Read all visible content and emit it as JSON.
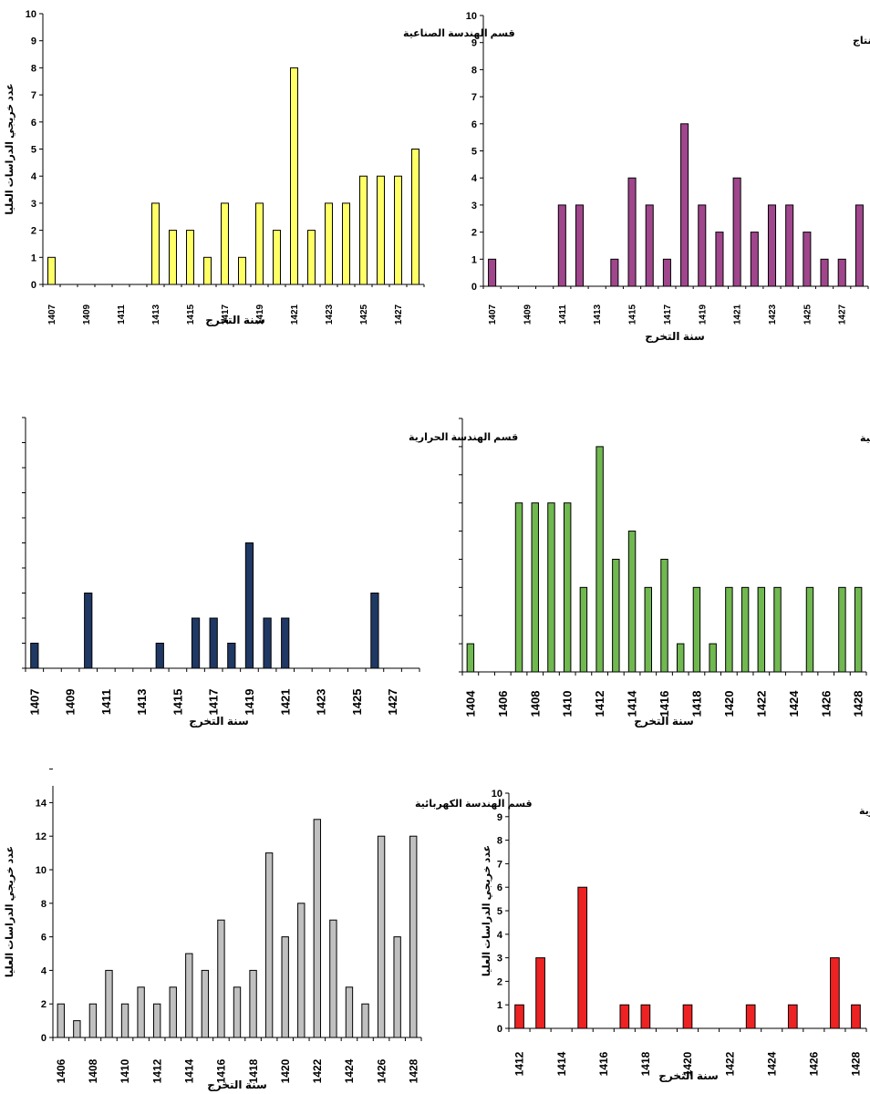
{
  "chart_data": [
    {
      "type": "bar",
      "title": "قسم الهندسة الصناعية",
      "xlabel": "سنة التخرج",
      "ylabel": "عدد خريجي الدراسات العليا",
      "ylim": [
        0,
        10
      ],
      "yticks": [
        0,
        1,
        2,
        3,
        4,
        5,
        6,
        7,
        8,
        9,
        10
      ],
      "bar_color": "#ffff66",
      "x_tick_labels": [
        "1407",
        "1409",
        "1411",
        "1413",
        "1415",
        "1417",
        "1419",
        "1421",
        "1423",
        "1425",
        "1427"
      ],
      "x": [
        1407,
        1408,
        1409,
        1410,
        1411,
        1412,
        1413,
        1414,
        1415,
        1416,
        1417,
        1418,
        1419,
        1420,
        1421,
        1422,
        1423,
        1424,
        1425,
        1426,
        1427,
        1428
      ],
      "values": [
        1,
        0,
        0,
        0,
        0,
        0,
        3,
        2,
        2,
        1,
        3,
        1,
        3,
        2,
        8,
        2,
        3,
        3,
        4,
        4,
        4,
        5
      ]
    },
    {
      "type": "bar",
      "title": "اقسم هندسة الإنتاج",
      "xlabel": "سنة التخرج",
      "ylabel": "",
      "ylim": [
        0,
        10
      ],
      "yticks": [
        0,
        1,
        2,
        3,
        4,
        5,
        6,
        7,
        8,
        9,
        10
      ],
      "bar_color": "#a0468c",
      "x_tick_labels": [
        "1407",
        "1409",
        "1411",
        "1413",
        "1415",
        "1417",
        "1419",
        "1421",
        "1423",
        "1425",
        "1427"
      ],
      "x": [
        1407,
        1408,
        1409,
        1410,
        1411,
        1412,
        1413,
        1414,
        1415,
        1416,
        1417,
        1418,
        1419,
        1420,
        1421,
        1422,
        1423,
        1424,
        1425,
        1426,
        1427,
        1428
      ],
      "values": [
        1,
        0,
        0,
        0,
        3,
        3,
        0,
        1,
        4,
        3,
        1,
        6,
        3,
        2,
        4,
        2,
        3,
        3,
        2,
        1,
        1,
        3
      ]
    },
    {
      "type": "bar",
      "title": "قسم الهندسة الحرارية",
      "xlabel": "سنة التخرج",
      "ylabel": "",
      "ylim": [
        0,
        10
      ],
      "yticks": [],
      "bar_color": "#1f3864",
      "x_tick_labels": [
        "1407",
        "1409",
        "1411",
        "1413",
        "1415",
        "1417",
        "1419",
        "1421",
        "1423",
        "1425",
        "1427"
      ],
      "x": [
        1407,
        1408,
        1409,
        1410,
        1411,
        1412,
        1413,
        1414,
        1415,
        1416,
        1417,
        1418,
        1419,
        1420,
        1421,
        1422,
        1423,
        1424,
        1425,
        1426,
        1427,
        1428
      ],
      "values": [
        1,
        0,
        0,
        3,
        0,
        0,
        0,
        1,
        0,
        2,
        2,
        1,
        5,
        2,
        2,
        0,
        0,
        0,
        0,
        3,
        0,
        0
      ]
    },
    {
      "type": "bar",
      "title": "قسم الهندسة المدنية",
      "xlabel": "سنة التخرج",
      "ylabel": "",
      "ylim": [
        0,
        9
      ],
      "yticks": [],
      "bar_color": "#70b850",
      "x_tick_labels": [
        "1404",
        "1406",
        "1408",
        "1410",
        "1412",
        "1414",
        "1416",
        "1418",
        "1420",
        "1422",
        "1424",
        "1426",
        "1428"
      ],
      "x": [
        1404,
        1405,
        1406,
        1407,
        1408,
        1409,
        1410,
        1411,
        1412,
        1413,
        1414,
        1415,
        1416,
        1417,
        1418,
        1419,
        1420,
        1421,
        1422,
        1423,
        1424,
        1425,
        1426,
        1427,
        1428
      ],
      "values": [
        1,
        0,
        0,
        6,
        6,
        6,
        6,
        3,
        8,
        4,
        5,
        3,
        4,
        1,
        3,
        1,
        3,
        3,
        3,
        3,
        0,
        3,
        0,
        3,
        3
      ]
    },
    {
      "type": "bar",
      "title": "قسم الهندسة الكهربائية",
      "xlabel": "سنة التخرج",
      "ylabel": "عدد خريجي الدراسات العليا",
      "ylim": [
        0,
        15
      ],
      "yticks": [
        0,
        2,
        4,
        6,
        8,
        10,
        12,
        14
      ],
      "bar_color": "#c0c0c0",
      "x_tick_labels": [
        "1406",
        "1408",
        "1410",
        "1412",
        "1414",
        "1416",
        "1418",
        "1420",
        "1422",
        "1424",
        "1426",
        "1428"
      ],
      "x": [
        1406,
        1407,
        1408,
        1409,
        1410,
        1411,
        1412,
        1413,
        1414,
        1415,
        1416,
        1417,
        1418,
        1419,
        1420,
        1421,
        1422,
        1423,
        1424,
        1425,
        1426,
        1427,
        1428
      ],
      "values": [
        2,
        1,
        2,
        4,
        2,
        3,
        2,
        3,
        5,
        4,
        7,
        3,
        4,
        11,
        6,
        8,
        13,
        7,
        3,
        2,
        12,
        6,
        12
      ]
    },
    {
      "type": "bar",
      "title": "قسم الهندسة النووية",
      "xlabel": "سنة التخرج",
      "ylabel": "عدد خريجي الدراسات العليا",
      "ylim": [
        0,
        10
      ],
      "yticks": [
        0,
        1,
        2,
        3,
        4,
        5,
        6,
        7,
        8,
        9,
        10
      ],
      "bar_color": "#ee2222",
      "x_tick_labels": [
        "1412",
        "1414",
        "1416",
        "1418",
        "1420",
        "1422",
        "1424",
        "1426",
        "1428"
      ],
      "x": [
        1412,
        1413,
        1414,
        1415,
        1416,
        1417,
        1418,
        1419,
        1420,
        1421,
        1422,
        1423,
        1424,
        1425,
        1426,
        1427,
        1428
      ],
      "values": [
        1,
        3,
        0,
        6,
        0,
        1,
        1,
        0,
        1,
        0,
        0,
        1,
        0,
        1,
        0,
        3,
        1
      ]
    }
  ]
}
